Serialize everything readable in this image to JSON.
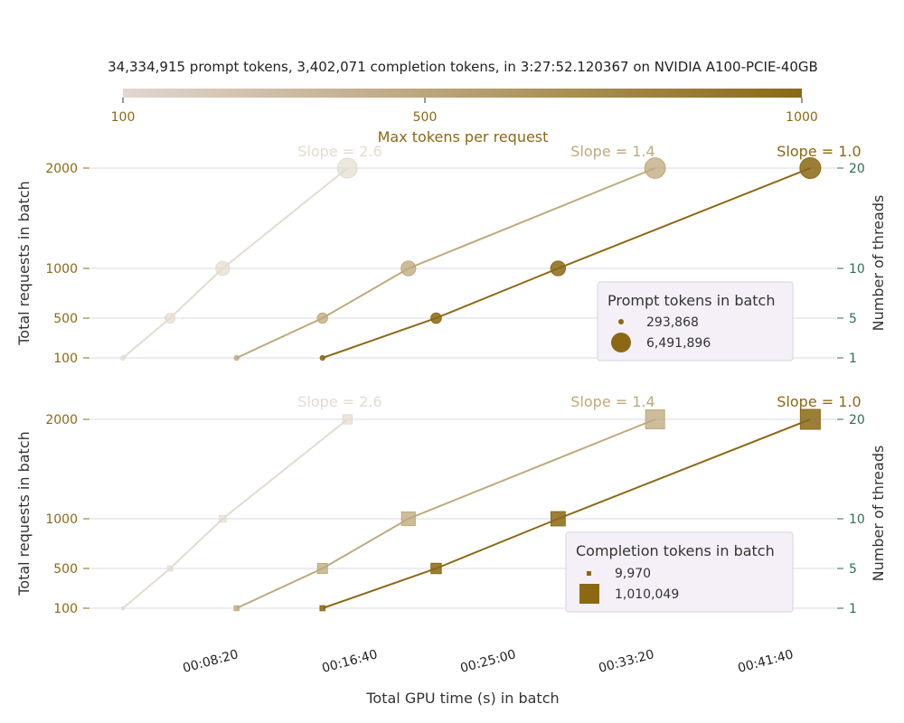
{
  "header": {
    "title": "34,334,915 prompt tokens, 3,402,071 completion tokens, in 3:27:52.120367 on NVIDIA A100-PCIE-40GB"
  },
  "colorbar": {
    "label": "Max tokens per request",
    "ticks": [
      "100",
      "500",
      "1000"
    ],
    "range": [
      100,
      1000
    ],
    "color_low": "#e2d6d0",
    "color_high": "#8b6914"
  },
  "colors": {
    "series_100": "#e3dccd",
    "series_500": "#bfa97c",
    "series_1000": "#8b6914",
    "left_axis_text": "#8b6914",
    "right_axis_text": "#2e6e55",
    "legend_bg": "#f5f0f8",
    "gridline": "#e6e6ee"
  },
  "chart_data": [
    {
      "type": "scatter",
      "panel": "prompt",
      "marker": "circle",
      "xlabel": "",
      "ylabel": "Total requests in batch",
      "y2label": "Number of threads",
      "xlim": [
        -300,
        2550
      ],
      "y_ticks": [
        "100",
        "500",
        "1000",
        "2000"
      ],
      "y2_ticks": [
        "1",
        "5",
        "10",
        "20"
      ],
      "grid": "horizontal",
      "legend": {
        "title": "Prompt tokens in batch",
        "placement": "center-right",
        "entries": [
          "293,868",
          "6,491,896"
        ]
      },
      "series": [
        {
          "max_tokens": 100,
          "slope_label": "Slope = 2.6",
          "points": [
            {
              "x": 0,
              "y": 100,
              "tokens": 293868
            },
            {
              "x": 170,
              "y": 500,
              "tokens": 1470000
            },
            {
              "x": 360,
              "y": 1000,
              "tokens": 2940000
            },
            {
              "x": 810,
              "y": 2000,
              "tokens": 5880000
            }
          ]
        },
        {
          "max_tokens": 500,
          "slope_label": "Slope = 1.4",
          "points": [
            {
              "x": 410,
              "y": 100,
              "tokens": 320000
            },
            {
              "x": 720,
              "y": 500,
              "tokens": 1600000
            },
            {
              "x": 1030,
              "y": 1000,
              "tokens": 3200000
            },
            {
              "x": 1920,
              "y": 2000,
              "tokens": 6400000
            }
          ]
        },
        {
          "max_tokens": 1000,
          "slope_label": "Slope = 1.0",
          "points": [
            {
              "x": 720,
              "y": 100,
              "tokens": 324000
            },
            {
              "x": 1130,
              "y": 500,
              "tokens": 1620000
            },
            {
              "x": 1570,
              "y": 1000,
              "tokens": 3245000
            },
            {
              "x": 2480,
              "y": 2000,
              "tokens": 6491896
            }
          ]
        }
      ]
    },
    {
      "type": "scatter",
      "panel": "completion",
      "marker": "square",
      "xlabel": "Total GPU time (s) in batch",
      "ylabel": "Total requests in batch",
      "y2label": "Number of threads",
      "xlim": [
        -300,
        2550
      ],
      "x_ticks": [
        "00:08:20",
        "00:16:40",
        "00:25:00",
        "00:33:20",
        "00:41:40"
      ],
      "x_tick_values": [
        500,
        1000,
        1500,
        2000,
        2500
      ],
      "y_ticks": [
        "100",
        "500",
        "1000",
        "2000"
      ],
      "y2_ticks": [
        "1",
        "5",
        "10",
        "20"
      ],
      "grid": "horizontal",
      "legend": {
        "title": "Completion tokens in batch",
        "placement": "center-right",
        "entries": [
          "9,970",
          "1,010,049"
        ]
      },
      "series": [
        {
          "max_tokens": 100,
          "slope_label": "Slope = 2.6",
          "points": [
            {
              "x": 0,
              "y": 100,
              "tokens": 9970
            },
            {
              "x": 170,
              "y": 500,
              "tokens": 50000
            },
            {
              "x": 360,
              "y": 1000,
              "tokens": 100000
            },
            {
              "x": 810,
              "y": 2000,
              "tokens": 200000
            }
          ]
        },
        {
          "max_tokens": 500,
          "slope_label": "Slope = 1.4",
          "points": [
            {
              "x": 410,
              "y": 100,
              "tokens": 45000
            },
            {
              "x": 720,
              "y": 500,
              "tokens": 230000
            },
            {
              "x": 1030,
              "y": 1000,
              "tokens": 460000
            },
            {
              "x": 1920,
              "y": 2000,
              "tokens": 920000
            }
          ]
        },
        {
          "max_tokens": 1000,
          "slope_label": "Slope = 1.0",
          "points": [
            {
              "x": 720,
              "y": 100,
              "tokens": 50000
            },
            {
              "x": 1130,
              "y": 500,
              "tokens": 252000
            },
            {
              "x": 1570,
              "y": 1000,
              "tokens": 505000
            },
            {
              "x": 2480,
              "y": 2000,
              "tokens": 1010049
            }
          ]
        }
      ]
    }
  ]
}
